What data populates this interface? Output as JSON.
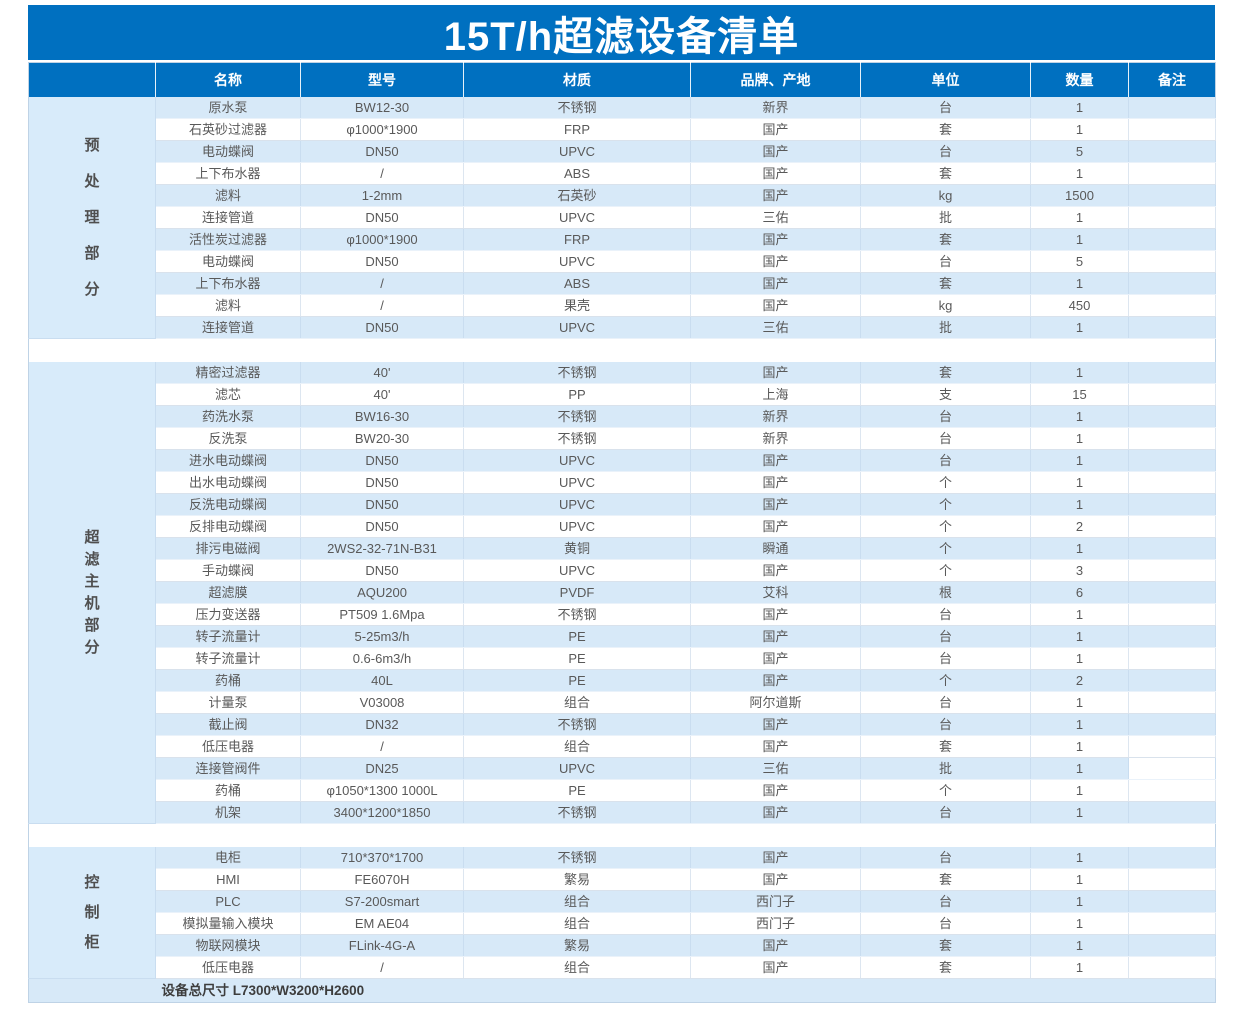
{
  "title": "15T/h超滤设备清单",
  "columns": [
    "名称",
    "型号",
    "材质",
    "品牌、产地",
    "单位",
    "数量",
    "备注"
  ],
  "colors": {
    "header_blue": "#0070C0",
    "row_blue": "#D7E9F8",
    "row_white": "#FFFFFF",
    "section_blue": "#D8EBFA",
    "title_text": "#FFFFFF",
    "body_text": "#595959"
  },
  "sections": [
    {
      "label": "预处理部分",
      "rows": [
        {
          "name": "原水泵",
          "model": "BW12-30",
          "material": "不锈钢",
          "brand": "新界",
          "unit": "台",
          "qty": "1",
          "note": ""
        },
        {
          "name": "石英砂过滤器",
          "model": "φ1000*1900",
          "material": "FRP",
          "brand": "国产",
          "unit": "套",
          "qty": "1",
          "note": ""
        },
        {
          "name": "电动蝶阀",
          "model": "DN50",
          "material": "UPVC",
          "brand": "国产",
          "unit": "台",
          "qty": "5",
          "note": ""
        },
        {
          "name": "上下布水器",
          "model": "/",
          "material": "ABS",
          "brand": "国产",
          "unit": "套",
          "qty": "1",
          "note": ""
        },
        {
          "name": "滤料",
          "model": "1-2mm",
          "material": "石英砂",
          "brand": "国产",
          "unit": "kg",
          "qty": "1500",
          "note": ""
        },
        {
          "name": "连接管道",
          "model": "DN50",
          "material": "UPVC",
          "brand": "三佑",
          "unit": "批",
          "qty": "1",
          "note": ""
        },
        {
          "name": "活性炭过滤器",
          "model": "φ1000*1900",
          "material": "FRP",
          "brand": "国产",
          "unit": "套",
          "qty": "1",
          "note": ""
        },
        {
          "name": "电动蝶阀",
          "model": "DN50",
          "material": "UPVC",
          "brand": "国产",
          "unit": "台",
          "qty": "5",
          "note": ""
        },
        {
          "name": "上下布水器",
          "model": "/",
          "material": "ABS",
          "brand": "国产",
          "unit": "套",
          "qty": "1",
          "note": ""
        },
        {
          "name": "滤料",
          "model": "/",
          "material": "果壳",
          "brand": "国产",
          "unit": "kg",
          "qty": "450",
          "note": ""
        },
        {
          "name": "连接管道",
          "model": "DN50",
          "material": "UPVC",
          "brand": "三佑",
          "unit": "批",
          "qty": "1",
          "note": ""
        }
      ]
    },
    {
      "label": "超滤主机部分",
      "rows": [
        {
          "name": "精密过滤器",
          "model": "40'",
          "material": "不锈钢",
          "brand": "国产",
          "unit": "套",
          "qty": "1",
          "note": ""
        },
        {
          "name": "滤芯",
          "model": "40'",
          "material": "PP",
          "brand": "上海",
          "unit": "支",
          "qty": "15",
          "note": ""
        },
        {
          "name": "药洗水泵",
          "model": "BW16-30",
          "material": "不锈钢",
          "brand": "新界",
          "unit": "台",
          "qty": "1",
          "note": ""
        },
        {
          "name": "反洗泵",
          "model": "BW20-30",
          "material": "不锈钢",
          "brand": "新界",
          "unit": "台",
          "qty": "1",
          "note": ""
        },
        {
          "name": "进水电动蝶阀",
          "model": "DN50",
          "material": "UPVC",
          "brand": "国产",
          "unit": "台",
          "qty": "1",
          "note": ""
        },
        {
          "name": "出水电动蝶阀",
          "model": "DN50",
          "material": "UPVC",
          "brand": "国产",
          "unit": "个",
          "qty": "1",
          "note": ""
        },
        {
          "name": "反洗电动蝶阀",
          "model": "DN50",
          "material": "UPVC",
          "brand": "国产",
          "unit": "个",
          "qty": "1",
          "note": ""
        },
        {
          "name": "反排电动蝶阀",
          "model": "DN50",
          "material": "UPVC",
          "brand": "国产",
          "unit": "个",
          "qty": "2",
          "note": ""
        },
        {
          "name": "排污电磁阀",
          "model": "2WS2-32-71N-B31",
          "material": "黄铜",
          "brand": "瞬通",
          "unit": "个",
          "qty": "1",
          "note": ""
        },
        {
          "name": "手动蝶阀",
          "model": "DN50",
          "material": "UPVC",
          "brand": "国产",
          "unit": "个",
          "qty": "3",
          "note": ""
        },
        {
          "name": "超滤膜",
          "model": "AQU200",
          "material": "PVDF",
          "brand": "艾科",
          "unit": "根",
          "qty": "6",
          "note": ""
        },
        {
          "name": "压力变送器",
          "model": "PT509 1.6Mpa",
          "material": "不锈钢",
          "brand": "国产",
          "unit": "台",
          "qty": "1",
          "note": ""
        },
        {
          "name": "转子流量计",
          "model": "5-25m3/h",
          "material": "PE",
          "brand": "国产",
          "unit": "台",
          "qty": "1",
          "note": ""
        },
        {
          "name": "转子流量计",
          "model": "0.6-6m3/h",
          "material": "PE",
          "brand": "国产",
          "unit": "台",
          "qty": "1",
          "note": ""
        },
        {
          "name": "药桶",
          "model": "40L",
          "material": "PE",
          "brand": "国产",
          "unit": "个",
          "qty": "2",
          "note": ""
        },
        {
          "name": "计量泵",
          "model": "V03008",
          "material": "组合",
          "brand": "阿尔道斯",
          "unit": "台",
          "qty": "1",
          "note": ""
        },
        {
          "name": "截止阀",
          "model": "DN32",
          "material": "不锈钢",
          "brand": "国产",
          "unit": "台",
          "qty": "1",
          "note": ""
        },
        {
          "name": "低压电器",
          "model": "/",
          "material": "组合",
          "brand": "国产",
          "unit": "套",
          "qty": "1",
          "note": ""
        },
        {
          "name": "连接管阀件",
          "model": "DN25",
          "material": "UPVC",
          "brand": "三佑",
          "unit": "批",
          "qty": "1",
          "note": "",
          "note_white": true
        },
        {
          "name": "药桶",
          "model": "φ1050*1300 1000L",
          "material": "PE",
          "brand": "国产",
          "unit": "个",
          "qty": "1",
          "note": ""
        },
        {
          "name": "机架",
          "model": "3400*1200*1850",
          "material": "不锈钢",
          "brand": "国产",
          "unit": "台",
          "qty": "1",
          "note": ""
        }
      ]
    },
    {
      "label": "控制柜",
      "rows": [
        {
          "name": "电柜",
          "model": "710*370*1700",
          "material": "不锈钢",
          "brand": "国产",
          "unit": "台",
          "qty": "1",
          "note": ""
        },
        {
          "name": "HMI",
          "model": "FE6070H",
          "material": "繁易",
          "brand": "国产",
          "unit": "套",
          "qty": "1",
          "note": ""
        },
        {
          "name": "PLC",
          "model": "S7-200smart",
          "material": "组合",
          "brand": "西门子",
          "unit": "台",
          "qty": "1",
          "note": ""
        },
        {
          "name": "模拟量输入模块",
          "model": "EM AE04",
          "material": "组合",
          "brand": "西门子",
          "unit": "台",
          "qty": "1",
          "note": ""
        },
        {
          "name": "物联网模块",
          "model": "FLink-4G-A",
          "material": "繁易",
          "brand": "国产",
          "unit": "套",
          "qty": "1",
          "note": ""
        },
        {
          "name": "低压电器",
          "model": "/",
          "material": "组合",
          "brand": "国产",
          "unit": "套",
          "qty": "1",
          "note": ""
        }
      ]
    }
  ],
  "footer": {
    "text": "设备总尺寸 L7300*W3200*H2600"
  }
}
